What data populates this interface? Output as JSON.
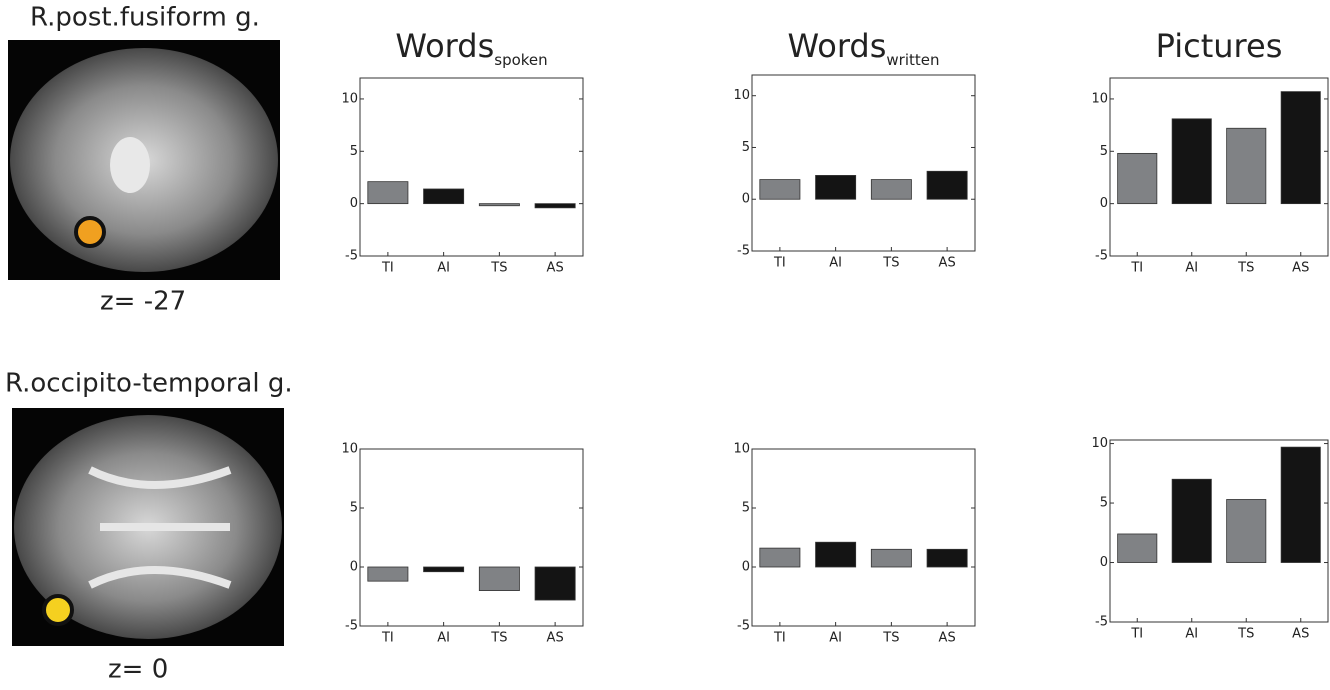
{
  "rows": [
    {
      "label": "R.post.fusiform g.",
      "slice": "z= -27"
    },
    {
      "label": "R.occipito-temporal g.",
      "slice": "z= 0"
    }
  ],
  "chart_data": [
    {
      "type": "bar",
      "title": "Words",
      "title_sub": "spoken",
      "categories": [
        "TI",
        "AI",
        "TS",
        "AS"
      ],
      "values": [
        2.1,
        1.4,
        -0.2,
        -0.4
      ],
      "colors": [
        "#808285",
        "#141414",
        "#808285",
        "#141414"
      ],
      "ylim": [
        -5,
        12
      ],
      "yticks": [
        -5,
        0,
        5,
        10
      ]
    },
    {
      "type": "bar",
      "title": "Words",
      "title_sub": "written",
      "categories": [
        "TI",
        "AI",
        "TS",
        "AS"
      ],
      "values": [
        1.9,
        2.3,
        1.9,
        2.7
      ],
      "colors": [
        "#808285",
        "#141414",
        "#808285",
        "#141414"
      ],
      "ylim": [
        -5,
        12
      ],
      "yticks": [
        -5,
        0,
        5,
        10
      ]
    },
    {
      "type": "bar",
      "title": "Pictures",
      "categories": [
        "TI",
        "AI",
        "TS",
        "AS"
      ],
      "values": [
        4.8,
        8.1,
        7.2,
        10.7
      ],
      "colors": [
        "#808285",
        "#141414",
        "#808285",
        "#141414"
      ],
      "ylim": [
        -5,
        12
      ],
      "yticks": [
        -5,
        0,
        5,
        10
      ]
    },
    {
      "type": "bar",
      "categories": [
        "TI",
        "AI",
        "TS",
        "AS"
      ],
      "values": [
        -1.2,
        -0.4,
        -2.0,
        -2.8
      ],
      "colors": [
        "#808285",
        "#141414",
        "#808285",
        "#141414"
      ],
      "ylim": [
        -5,
        10
      ],
      "yticks": [
        -5,
        0,
        5,
        10
      ]
    },
    {
      "type": "bar",
      "categories": [
        "TI",
        "AI",
        "TS",
        "AS"
      ],
      "values": [
        1.6,
        2.1,
        1.5,
        1.5
      ],
      "colors": [
        "#808285",
        "#141414",
        "#808285",
        "#141414"
      ],
      "ylim": [
        -5,
        10
      ],
      "yticks": [
        -5,
        0,
        5,
        10
      ]
    },
    {
      "type": "bar",
      "categories": [
        "TI",
        "AI",
        "TS",
        "AS"
      ],
      "values": [
        2.4,
        7.0,
        5.3,
        9.7
      ],
      "colors": [
        "#808285",
        "#141414",
        "#808285",
        "#141414"
      ],
      "ylim": [
        -5,
        10.3
      ],
      "yticks": [
        -5,
        0,
        5,
        10
      ]
    }
  ]
}
